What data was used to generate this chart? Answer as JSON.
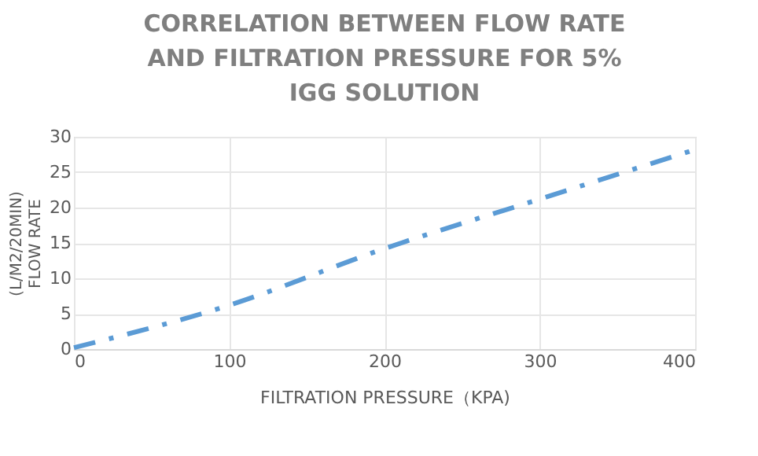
{
  "chart_data": {
    "type": "line",
    "title": "CORRELATION BETWEEN FLOW RATE\nAND FILTRATION PRESSURE FOR 5%\nIGG SOLUTION",
    "xlabel": "FILTRATION PRESSURE（KPA)",
    "ylabel": "(L/M2/20MIN)\nFLOW RATE",
    "x": [
      0,
      100,
      200,
      300,
      400
    ],
    "series": [
      {
        "color": "#5b9bd5",
        "values": [
          0.2,
          6.2,
          14.2,
          21.2,
          28.2
        ]
      }
    ],
    "xlim": [
      0,
      400
    ],
    "xticks": [
      0,
      100,
      200,
      300,
      400
    ],
    "ylim": [
      0,
      30
    ],
    "yticks": [
      0,
      5,
      10,
      15,
      20,
      25,
      30
    ],
    "grid": true,
    "marker": "none",
    "line_style": "dashed",
    "legend": false
  }
}
